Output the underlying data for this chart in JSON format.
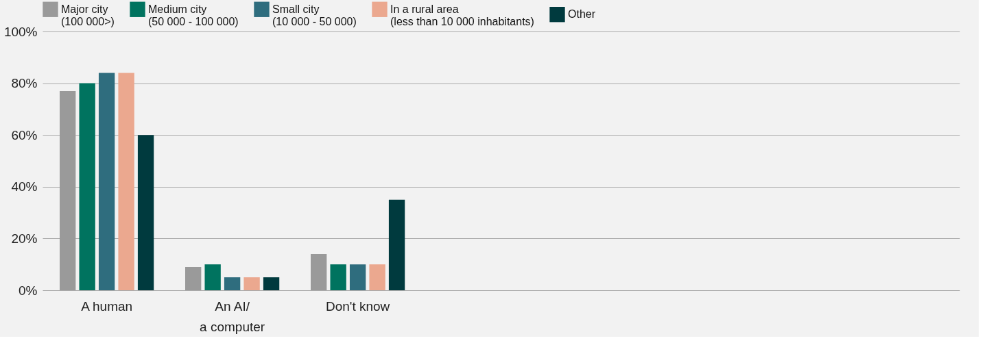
{
  "chart_data": {
    "type": "bar",
    "categories": [
      "A human",
      "An AI/\na computer",
      "Don't know"
    ],
    "series": [
      {
        "name": "Major city\n(100 000>)",
        "color": "#9a9a9a",
        "values": [
          77,
          9,
          14
        ]
      },
      {
        "name": "Medium city\n(50 000 - 100 000)",
        "color": "#00735f",
        "values": [
          80,
          10,
          10
        ]
      },
      {
        "name": "Small city\n(10 000 - 50 000)",
        "color": "#2f6d7e",
        "values": [
          84,
          5,
          10
        ]
      },
      {
        "name": "In a rural area\n(less than 10 000 inhabitants)",
        "color": "#eba88f",
        "values": [
          84,
          5,
          10
        ]
      },
      {
        "name": "Other",
        "color": "#003a3e",
        "values": [
          60,
          5,
          35
        ]
      }
    ],
    "ylim": [
      0,
      100
    ],
    "yticks": [
      {
        "value": 0,
        "label": "0%"
      },
      {
        "value": 20,
        "label": "20%"
      },
      {
        "value": 40,
        "label": "40%"
      },
      {
        "value": 60,
        "label": "60%"
      },
      {
        "value": 80,
        "label": "80%"
      },
      {
        "value": 100,
        "label": "100%"
      }
    ],
    "grid": "y",
    "legend": "top right"
  }
}
